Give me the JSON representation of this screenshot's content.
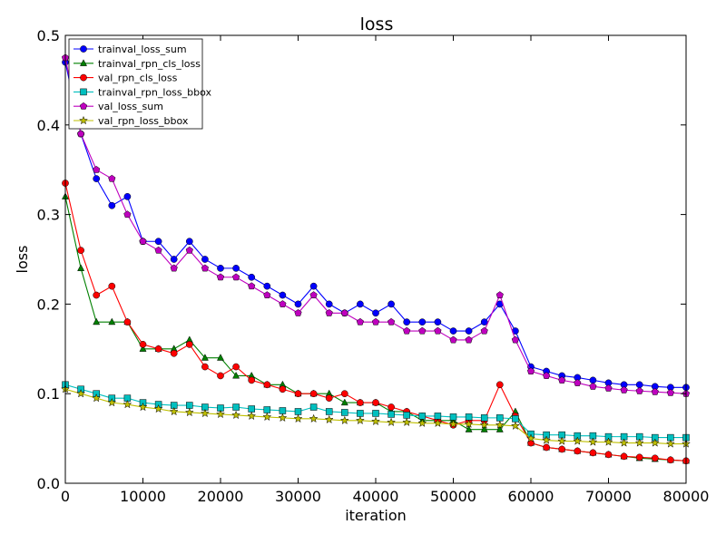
{
  "chart_data": {
    "type": "line",
    "title": "loss",
    "xlabel": "iteration",
    "ylabel": "loss",
    "xlim": [
      0,
      80000
    ],
    "ylim": [
      0,
      0.5
    ],
    "xticks": [
      0,
      10000,
      20000,
      30000,
      40000,
      50000,
      60000,
      70000,
      80000
    ],
    "yticks": [
      0.0,
      0.1,
      0.2,
      0.3,
      0.4,
      0.5
    ],
    "xtick_labels": [
      "0",
      "10000",
      "20000",
      "30000",
      "40000",
      "50000",
      "60000",
      "70000",
      "80000"
    ],
    "ytick_labels": [
      "0.0",
      "0.1",
      "0.2",
      "0.3",
      "0.4",
      "0.5"
    ],
    "grid": false,
    "legend_position": "top-left",
    "series": [
      {
        "name": "trainval_loss_sum",
        "color": "#0000ff",
        "marker": "circle",
        "x": [
          0,
          2000,
          4000,
          6000,
          8000,
          10000,
          12000,
          14000,
          16000,
          18000,
          20000,
          22000,
          24000,
          26000,
          28000,
          30000,
          32000,
          34000,
          36000,
          38000,
          40000,
          42000,
          44000,
          46000,
          48000,
          50000,
          52000,
          54000,
          56000,
          58000,
          60000,
          62000,
          64000,
          66000,
          68000,
          70000,
          72000,
          74000,
          76000,
          78000,
          80000
        ],
        "values": [
          0.47,
          0.39,
          0.34,
          0.31,
          0.32,
          0.27,
          0.27,
          0.25,
          0.27,
          0.25,
          0.24,
          0.24,
          0.23,
          0.22,
          0.21,
          0.2,
          0.22,
          0.2,
          0.19,
          0.2,
          0.19,
          0.2,
          0.18,
          0.18,
          0.18,
          0.17,
          0.17,
          0.18,
          0.2,
          0.17,
          0.13,
          0.125,
          0.12,
          0.118,
          0.115,
          0.112,
          0.11,
          0.11,
          0.108,
          0.107,
          0.107
        ]
      },
      {
        "name": "trainval_rpn_cls_loss",
        "color": "#008000",
        "marker": "triangle",
        "x": [
          0,
          2000,
          4000,
          6000,
          8000,
          10000,
          12000,
          14000,
          16000,
          18000,
          20000,
          22000,
          24000,
          26000,
          28000,
          30000,
          32000,
          34000,
          36000,
          38000,
          40000,
          42000,
          44000,
          46000,
          48000,
          50000,
          52000,
          54000,
          56000,
          58000,
          60000,
          62000,
          64000,
          66000,
          68000,
          70000,
          72000,
          74000,
          76000,
          78000,
          80000
        ],
        "values": [
          0.32,
          0.24,
          0.18,
          0.18,
          0.18,
          0.15,
          0.15,
          0.15,
          0.16,
          0.14,
          0.14,
          0.12,
          0.12,
          0.11,
          0.11,
          0.1,
          0.1,
          0.1,
          0.09,
          0.09,
          0.09,
          0.08,
          0.08,
          0.07,
          0.07,
          0.07,
          0.06,
          0.06,
          0.06,
          0.08,
          0.045,
          0.04,
          0.038,
          0.036,
          0.034,
          0.032,
          0.03,
          0.028,
          0.027,
          0.026,
          0.025
        ]
      },
      {
        "name": "val_rpn_cls_loss",
        "color": "#ff0000",
        "marker": "circle",
        "x": [
          0,
          2000,
          4000,
          6000,
          8000,
          10000,
          12000,
          14000,
          16000,
          18000,
          20000,
          22000,
          24000,
          26000,
          28000,
          30000,
          32000,
          34000,
          36000,
          38000,
          40000,
          42000,
          44000,
          46000,
          48000,
          50000,
          52000,
          54000,
          56000,
          58000,
          60000,
          62000,
          64000,
          66000,
          68000,
          70000,
          72000,
          74000,
          76000,
          78000,
          80000
        ],
        "values": [
          0.335,
          0.26,
          0.21,
          0.22,
          0.18,
          0.155,
          0.15,
          0.145,
          0.155,
          0.13,
          0.12,
          0.13,
          0.115,
          0.11,
          0.105,
          0.1,
          0.1,
          0.095,
          0.1,
          0.09,
          0.09,
          0.085,
          0.08,
          0.075,
          0.07,
          0.065,
          0.07,
          0.07,
          0.11,
          0.075,
          0.045,
          0.04,
          0.038,
          0.036,
          0.034,
          0.032,
          0.03,
          0.029,
          0.028,
          0.026,
          0.025
        ]
      },
      {
        "name": "trainval_rpn_loss_bbox",
        "color": "#00bfbf",
        "marker": "square",
        "x": [
          0,
          2000,
          4000,
          6000,
          8000,
          10000,
          12000,
          14000,
          16000,
          18000,
          20000,
          22000,
          24000,
          26000,
          28000,
          30000,
          32000,
          34000,
          36000,
          38000,
          40000,
          42000,
          44000,
          46000,
          48000,
          50000,
          52000,
          54000,
          56000,
          58000,
          60000,
          62000,
          64000,
          66000,
          68000,
          70000,
          72000,
          74000,
          76000,
          78000,
          80000
        ],
        "values": [
          0.11,
          0.105,
          0.1,
          0.095,
          0.095,
          0.09,
          0.088,
          0.087,
          0.087,
          0.085,
          0.084,
          0.085,
          0.083,
          0.082,
          0.081,
          0.08,
          0.085,
          0.08,
          0.079,
          0.078,
          0.078,
          0.077,
          0.076,
          0.075,
          0.075,
          0.074,
          0.074,
          0.073,
          0.073,
          0.072,
          0.055,
          0.054,
          0.054,
          0.053,
          0.053,
          0.052,
          0.052,
          0.052,
          0.051,
          0.051,
          0.051
        ]
      },
      {
        "name": "val_loss_sum",
        "color": "#bf00bf",
        "marker": "pentagon",
        "x": [
          0,
          2000,
          4000,
          6000,
          8000,
          10000,
          12000,
          14000,
          16000,
          18000,
          20000,
          22000,
          24000,
          26000,
          28000,
          30000,
          32000,
          34000,
          36000,
          38000,
          40000,
          42000,
          44000,
          46000,
          48000,
          50000,
          52000,
          54000,
          56000,
          58000,
          60000,
          62000,
          64000,
          66000,
          68000,
          70000,
          72000,
          74000,
          76000,
          78000,
          80000
        ],
        "values": [
          0.475,
          0.39,
          0.35,
          0.34,
          0.3,
          0.27,
          0.26,
          0.24,
          0.26,
          0.24,
          0.23,
          0.23,
          0.22,
          0.21,
          0.2,
          0.19,
          0.21,
          0.19,
          0.19,
          0.18,
          0.18,
          0.18,
          0.17,
          0.17,
          0.17,
          0.16,
          0.16,
          0.17,
          0.21,
          0.16,
          0.125,
          0.12,
          0.115,
          0.112,
          0.108,
          0.106,
          0.104,
          0.103,
          0.102,
          0.101,
          0.1
        ]
      },
      {
        "name": "val_rpn_loss_bbox",
        "color": "#bfbf00",
        "marker": "star",
        "x": [
          0,
          2000,
          4000,
          6000,
          8000,
          10000,
          12000,
          14000,
          16000,
          18000,
          20000,
          22000,
          24000,
          26000,
          28000,
          30000,
          32000,
          34000,
          36000,
          38000,
          40000,
          42000,
          44000,
          46000,
          48000,
          50000,
          52000,
          54000,
          56000,
          58000,
          60000,
          62000,
          64000,
          66000,
          68000,
          70000,
          72000,
          74000,
          76000,
          78000,
          80000
        ],
        "values": [
          0.105,
          0.1,
          0.095,
          0.09,
          0.088,
          0.085,
          0.083,
          0.08,
          0.079,
          0.078,
          0.077,
          0.076,
          0.075,
          0.074,
          0.073,
          0.072,
          0.072,
          0.071,
          0.07,
          0.07,
          0.069,
          0.068,
          0.068,
          0.067,
          0.067,
          0.066,
          0.066,
          0.065,
          0.065,
          0.064,
          0.05,
          0.048,
          0.047,
          0.047,
          0.046,
          0.046,
          0.045,
          0.045,
          0.045,
          0.044,
          0.044
        ]
      }
    ]
  }
}
